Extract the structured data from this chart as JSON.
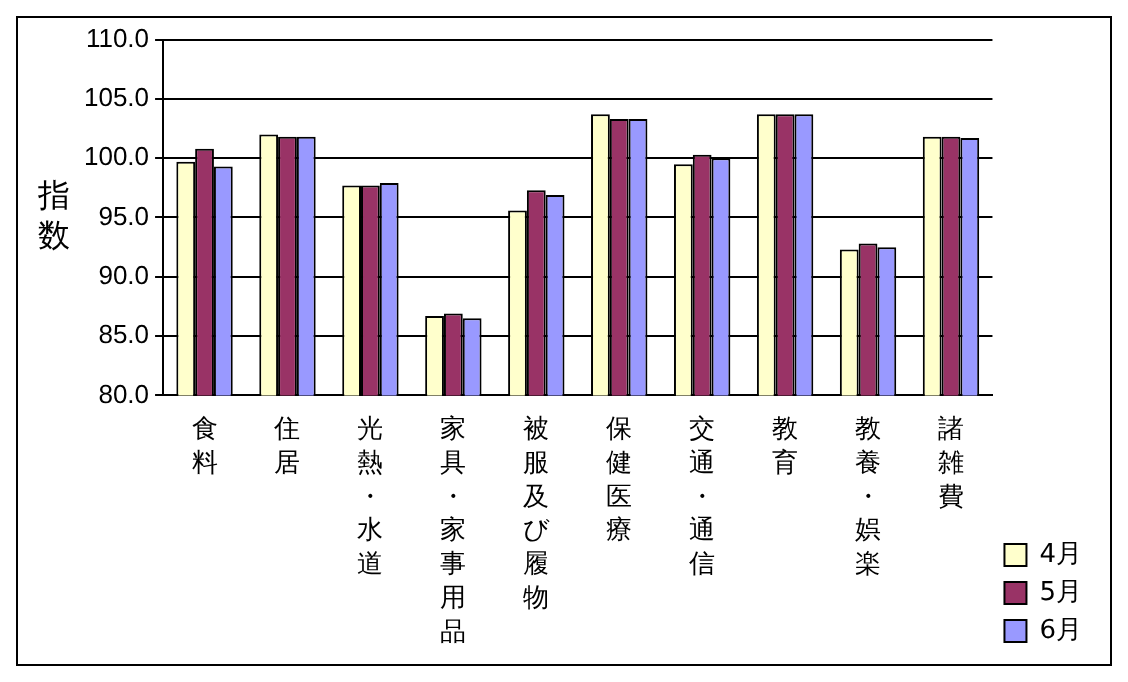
{
  "chart_data": {
    "type": "bar",
    "ylabel": "指数",
    "categories": [
      "食料",
      "住居",
      "光熱・水道",
      "家具・家事用品",
      "被服及び履物",
      "保健医療",
      "交通・通信",
      "教育",
      "教養・娯楽",
      "諸雑費"
    ],
    "series": [
      {
        "name": "4月",
        "color": "#ffffcc",
        "values": [
          99.7,
          102.0,
          97.7,
          86.7,
          95.6,
          103.7,
          99.5,
          103.7,
          92.3,
          101.8
        ]
      },
      {
        "name": "5月",
        "color": "#993366",
        "values": [
          100.8,
          101.8,
          97.7,
          86.9,
          97.3,
          103.3,
          100.3,
          103.7,
          92.8,
          101.8
        ]
      },
      {
        "name": "6月",
        "color": "#9999ff",
        "values": [
          99.3,
          101.8,
          97.9,
          86.5,
          96.9,
          103.3,
          100.0,
          103.7,
          92.5,
          101.7
        ]
      }
    ],
    "ylim": [
      80,
      110
    ],
    "yticks": [
      {
        "value": 80,
        "label": "80.0"
      },
      {
        "value": 85,
        "label": "85.0"
      },
      {
        "value": 90,
        "label": "90.0"
      },
      {
        "value": 95,
        "label": "95.0"
      },
      {
        "value": 100,
        "label": "100.0"
      },
      {
        "value": 105,
        "label": "105.0"
      },
      {
        "value": 110,
        "label": "110.0"
      }
    ],
    "grid": "y",
    "legend": "bottom right"
  }
}
